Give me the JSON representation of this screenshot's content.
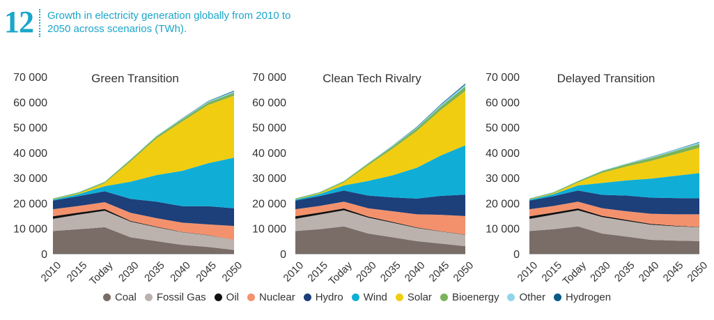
{
  "header": {
    "number": "12",
    "title": "Growth in electricity generation globally from 2010 to 2050 across scenarios (TWh)."
  },
  "colors": {
    "Coal": "#7a6c66",
    "Fossil Gas": "#bbb2ae",
    "Oil": "#111111",
    "Nuclear": "#f3916d",
    "Hydro": "#1d3f7a",
    "Wind": "#10aed6",
    "Solar": "#f1cd12",
    "Bioenergy": "#7ab35a",
    "Other": "#8fd5ec",
    "Hydrogen": "#0a5a86"
  },
  "legend": [
    "Coal",
    "Fossil Gas",
    "Oil",
    "Nuclear",
    "Hydro",
    "Wind",
    "Solar",
    "Bioenergy",
    "Other",
    "Hydrogen"
  ],
  "chart_data": [
    {
      "type": "area",
      "title": "Green Transition",
      "categories": [
        "2010",
        "2015",
        "Today",
        "2030",
        "2035",
        "2040",
        "2045",
        "2050"
      ],
      "ylim": [
        0,
        70000
      ],
      "yticks": [
        "0",
        "10 000",
        "20 000",
        "30 000",
        "40 000",
        "50 000",
        "60 000",
        "70 000"
      ],
      "series": [
        {
          "name": "Coal",
          "values": [
            9000,
            9700,
            10500,
            6500,
            5000,
            3500,
            2700,
            1500
          ]
        },
        {
          "name": "Fossil Gas",
          "values": [
            4800,
            5800,
            6500,
            6200,
            5500,
            5000,
            4600,
            4000
          ]
        },
        {
          "name": "Oil",
          "values": [
            1000,
            800,
            700,
            300,
            200,
            100,
            100,
            0
          ]
        },
        {
          "name": "Nuclear",
          "values": [
            2800,
            2600,
            2700,
            3200,
            3400,
            3700,
            4200,
            5500
          ]
        },
        {
          "name": "Hydro",
          "values": [
            3400,
            3900,
            4300,
            5500,
            6500,
            6500,
            7200,
            7000
          ]
        },
        {
          "name": "Wind",
          "values": [
            400,
            800,
            2000,
            6800,
            10500,
            14000,
            17000,
            20000
          ]
        },
        {
          "name": "Solar",
          "values": [
            100,
            300,
            1200,
            8000,
            14500,
            19500,
            23000,
            24500
          ]
        },
        {
          "name": "Bioenergy",
          "values": [
            300,
            400,
            500,
            700,
            800,
            900,
            1000,
            1200
          ]
        },
        {
          "name": "Other",
          "values": [
            100,
            100,
            100,
            200,
            200,
            300,
            400,
            500
          ]
        },
        {
          "name": "Hydrogen",
          "values": [
            0,
            0,
            0,
            0,
            0,
            100,
            200,
            300
          ]
        }
      ]
    },
    {
      "type": "area",
      "title": "Clean Tech Rivalry",
      "categories": [
        "2010",
        "2015",
        "Today",
        "2030",
        "2035",
        "2040",
        "2045",
        "2050"
      ],
      "ylim": [
        0,
        70000
      ],
      "yticks": [
        "0",
        "10 000",
        "20 000",
        "30 000",
        "40 000",
        "50 000",
        "60 000",
        "70 000"
      ],
      "series": [
        {
          "name": "Coal",
          "values": [
            9000,
            9700,
            10800,
            8000,
            6500,
            5000,
            4000,
            3000
          ]
        },
        {
          "name": "Fossil Gas",
          "values": [
            4800,
            5800,
            6400,
            6300,
            5800,
            5200,
            4800,
            4500
          ]
        },
        {
          "name": "Oil",
          "values": [
            1000,
            800,
            700,
            400,
            300,
            200,
            100,
            100
          ]
        },
        {
          "name": "Nuclear",
          "values": [
            2800,
            2600,
            2700,
            3300,
            4200,
            5200,
            6500,
            7300
          ]
        },
        {
          "name": "Hydro",
          "values": [
            3400,
            3900,
            4400,
            5000,
            5500,
            6200,
            7500,
            8500
          ]
        },
        {
          "name": "Wind",
          "values": [
            400,
            800,
            2000,
            5800,
            8700,
            12200,
            16000,
            19500
          ]
        },
        {
          "name": "Solar",
          "values": [
            100,
            300,
            1200,
            6200,
            10500,
            14500,
            18000,
            21500
          ]
        },
        {
          "name": "Bioenergy",
          "values": [
            300,
            400,
            500,
            700,
            900,
            1100,
            1400,
            1700
          ]
        },
        {
          "name": "Other",
          "values": [
            100,
            100,
            100,
            200,
            300,
            400,
            600,
            800
          ]
        },
        {
          "name": "Hydrogen",
          "values": [
            0,
            0,
            0,
            0,
            100,
            200,
            300,
            400
          ]
        }
      ]
    },
    {
      "type": "area",
      "title": "Delayed Transition",
      "categories": [
        "2010",
        "2015",
        "Today",
        "2030",
        "2035",
        "2040",
        "2045",
        "2050"
      ],
      "ylim": [
        0,
        70000
      ],
      "yticks": [
        "0",
        "10 000",
        "20 000",
        "30 000",
        "40 000",
        "50 000",
        "60 000",
        "70 000"
      ],
      "series": [
        {
          "name": "Coal",
          "values": [
            9000,
            9700,
            10800,
            8000,
            6800,
            5500,
            5200,
            5000
          ]
        },
        {
          "name": "Fossil Gas",
          "values": [
            4800,
            5800,
            6400,
            6500,
            6200,
            6000,
            5700,
            5500
          ]
        },
        {
          "name": "Oil",
          "values": [
            1000,
            800,
            700,
            500,
            400,
            300,
            200,
            100
          ]
        },
        {
          "name": "Nuclear",
          "values": [
            2800,
            2600,
            2700,
            3000,
            3400,
            4000,
            4500,
            5000
          ]
        },
        {
          "name": "Hydro",
          "values": [
            3400,
            3900,
            4400,
            5300,
            6200,
            6400,
            6400,
            6300
          ]
        },
        {
          "name": "Wind",
          "values": [
            400,
            800,
            2000,
            4700,
            6000,
            7500,
            8800,
            10000
          ]
        },
        {
          "name": "Solar",
          "values": [
            100,
            300,
            1200,
            4000,
            5500,
            7000,
            8500,
            10000
          ]
        },
        {
          "name": "Bioenergy",
          "values": [
            300,
            400,
            500,
            700,
            900,
            1100,
            1300,
            1500
          ]
        },
        {
          "name": "Other",
          "values": [
            100,
            100,
            100,
            200,
            300,
            400,
            500,
            600
          ]
        },
        {
          "name": "Hydrogen",
          "values": [
            0,
            0,
            0,
            0,
            0,
            100,
            100,
            200
          ]
        }
      ]
    }
  ]
}
